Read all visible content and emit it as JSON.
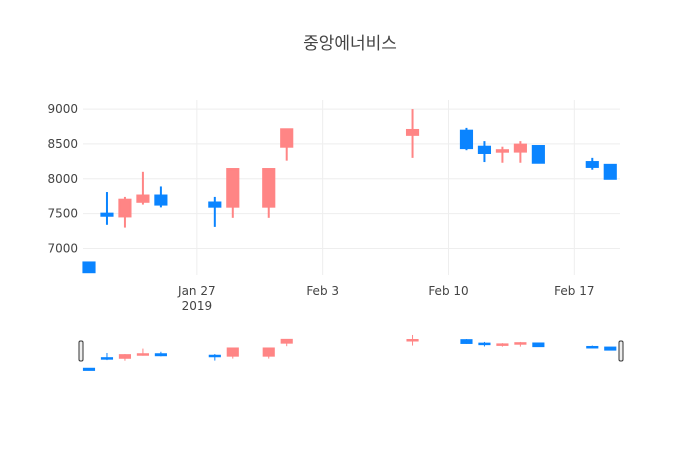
{
  "chart_data": {
    "type": "candlestick",
    "title": "중앙에너비스",
    "x": [
      "2019-01-21",
      "2019-01-22",
      "2019-01-23",
      "2019-01-24",
      "2019-01-25",
      "2019-01-28",
      "2019-01-29",
      "2019-01-31",
      "2019-02-01",
      "2019-02-08",
      "2019-02-11",
      "2019-02-12",
      "2019-02-13",
      "2019-02-14",
      "2019-02-15",
      "2019-02-18",
      "2019-02-19"
    ],
    "open": [
      6800,
      7500,
      7460,
      7670,
      7760,
      7660,
      7600,
      7600,
      8460,
      8630,
      8690,
      8460,
      8390,
      8390,
      8470,
      8240,
      8200
    ],
    "high": [
      6800,
      7810,
      7740,
      8100,
      7890,
      7740,
      8140,
      8140,
      8710,
      9000,
      8730,
      8540,
      8460,
      8540,
      8470,
      8300,
      8200
    ],
    "low": [
      6650,
      7340,
      7300,
      7630,
      7590,
      7310,
      7440,
      7440,
      8260,
      8300,
      8410,
      8240,
      8230,
      8230,
      8230,
      8130,
      8000
    ],
    "close": [
      6660,
      7470,
      7700,
      7760,
      7630,
      7600,
      8140,
      8140,
      8710,
      8700,
      8440,
      8370,
      8410,
      8490,
      8230,
      8170,
      8000
    ],
    "increasing_color": "#ff8585",
    "decreasing_color": "#0a84ff",
    "xlim": [
      "2019-01-20T16:00",
      "2019-02-19T13:00"
    ],
    "ylim": [
      6620,
      9130
    ],
    "yticks": [
      7000,
      7500,
      8000,
      8500,
      9000
    ],
    "xticks": [
      {
        "value": "2019-01-27",
        "label": "Jan 27\n2019"
      },
      {
        "value": "2019-02-03",
        "label": "Feb 3"
      },
      {
        "value": "2019-02-10",
        "label": "Feb 10"
      },
      {
        "value": "2019-02-17",
        "label": "Feb 17"
      }
    ],
    "grid": true,
    "rangeslider": true
  }
}
